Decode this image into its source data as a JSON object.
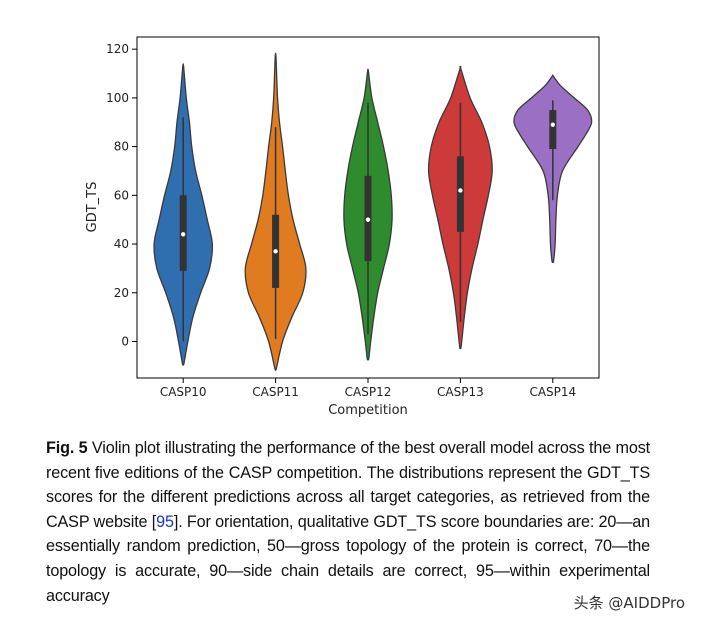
{
  "chart_data": {
    "type": "violin",
    "title": "",
    "xlabel": "Competition",
    "ylabel": "GDT_TS",
    "ylim": [
      -15,
      125
    ],
    "yticks": [
      0,
      20,
      40,
      60,
      80,
      100,
      120
    ],
    "grid": false,
    "categories": [
      "CASP10",
      "CASP11",
      "CASP12",
      "CASP13",
      "CASP14"
    ],
    "series": [
      {
        "category": "CASP10",
        "color": "#2f6fb0",
        "min": -9,
        "max": 113,
        "q1": 29,
        "median": 44,
        "q3": 60,
        "whisker_low": 0,
        "whisker_high": 92,
        "density": [
          [
            -9,
            0.02
          ],
          [
            0,
            0.12
          ],
          [
            10,
            0.25
          ],
          [
            20,
            0.45
          ],
          [
            30,
            0.68
          ],
          [
            40,
            0.75
          ],
          [
            50,
            0.62
          ],
          [
            60,
            0.48
          ],
          [
            70,
            0.32
          ],
          [
            80,
            0.22
          ],
          [
            90,
            0.16
          ],
          [
            100,
            0.08
          ],
          [
            113,
            0.01
          ]
        ]
      },
      {
        "category": "CASP11",
        "color": "#e07b20",
        "min": -11,
        "max": 117,
        "q1": 22,
        "median": 37,
        "q3": 52,
        "whisker_low": 1,
        "whisker_high": 88,
        "density": [
          [
            -11,
            0.02
          ],
          [
            0,
            0.18
          ],
          [
            10,
            0.42
          ],
          [
            20,
            0.7
          ],
          [
            30,
            0.78
          ],
          [
            40,
            0.62
          ],
          [
            50,
            0.45
          ],
          [
            60,
            0.33
          ],
          [
            70,
            0.25
          ],
          [
            80,
            0.18
          ],
          [
            90,
            0.1
          ],
          [
            100,
            0.05
          ],
          [
            117,
            0.01
          ]
        ]
      },
      {
        "category": "CASP12",
        "color": "#2e8b2e",
        "min": -7,
        "max": 111,
        "q1": 33,
        "median": 50,
        "q3": 68,
        "whisker_low": 3,
        "whisker_high": 98,
        "density": [
          [
            -7,
            0.02
          ],
          [
            0,
            0.07
          ],
          [
            10,
            0.15
          ],
          [
            20,
            0.25
          ],
          [
            30,
            0.4
          ],
          [
            40,
            0.55
          ],
          [
            50,
            0.62
          ],
          [
            60,
            0.6
          ],
          [
            70,
            0.52
          ],
          [
            80,
            0.4
          ],
          [
            90,
            0.25
          ],
          [
            100,
            0.1
          ],
          [
            111,
            0.01
          ]
        ]
      },
      {
        "category": "CASP13",
        "color": "#cc3a3a",
        "min": -2,
        "max": 112,
        "q1": 45,
        "median": 62,
        "q3": 76,
        "whisker_low": 8,
        "whisker_high": 98,
        "density": [
          [
            -2,
            0.02
          ],
          [
            10,
            0.1
          ],
          [
            20,
            0.18
          ],
          [
            30,
            0.3
          ],
          [
            40,
            0.45
          ],
          [
            50,
            0.58
          ],
          [
            60,
            0.72
          ],
          [
            70,
            0.82
          ],
          [
            80,
            0.75
          ],
          [
            90,
            0.55
          ],
          [
            100,
            0.25
          ],
          [
            112,
            0.01
          ]
        ]
      },
      {
        "category": "CASP14",
        "color": "#9a6fc4",
        "min": 33,
        "max": 109,
        "q1": 79,
        "median": 89,
        "q3": 95,
        "whisker_low": 58,
        "whisker_high": 99,
        "density": [
          [
            33,
            0.02
          ],
          [
            40,
            0.06
          ],
          [
            50,
            0.08
          ],
          [
            60,
            0.12
          ],
          [
            70,
            0.25
          ],
          [
            80,
            0.65
          ],
          [
            85,
            0.85
          ],
          [
            90,
            1.0
          ],
          [
            95,
            0.9
          ],
          [
            100,
            0.55
          ],
          [
            105,
            0.2
          ],
          [
            109,
            0.01
          ]
        ]
      }
    ]
  },
  "caption": {
    "label": "Fig. 5",
    "text_before_ref": " Violin plot illustrating the performance of the best overall model across the most recent five editions of the CASP competition. The distributions represent the GDT_TS scores for the different predictions across all target categories, as retrieved from the CASP website [",
    "ref": "95",
    "text_after_ref": "]. For orientation, qualitative GDT_TS score boundaries are: 20—an essentially random prediction, 50—gross topology of the protein is correct, 70—the topology is accurate, 90—side chain details are correct, 95—within experimental accuracy"
  },
  "watermark": "头条 @AIDDPro"
}
